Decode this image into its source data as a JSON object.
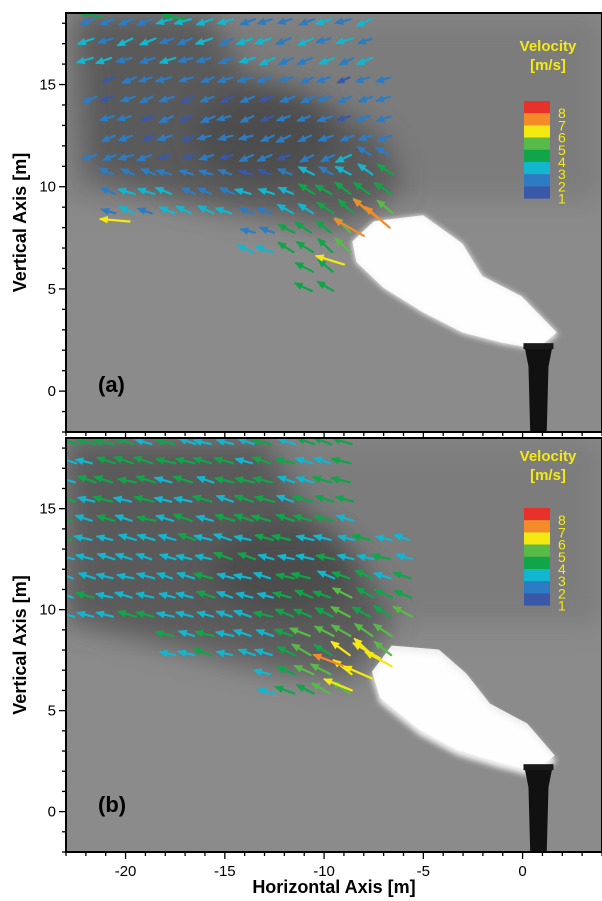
{
  "chart_data": {
    "type": "quiver",
    "panels": [
      {
        "label": "(a)",
        "xlim": [
          -23,
          4
        ],
        "ylim": [
          -2,
          18.5
        ],
        "yticks": [
          0,
          5,
          10,
          15
        ],
        "xticks": [],
        "ylabel": "Vertical Axis [m]",
        "legend": {
          "title_line1": "Velocity",
          "title_line2": "[m/s]",
          "labels": [
            "8",
            "7",
            "6",
            "5",
            "4",
            "3",
            "2",
            "1"
          ],
          "colors": [
            "#e8312a",
            "#f58a28",
            "#f4ea12",
            "#58bb47",
            "#11a54a",
            "#12b6cf",
            "#2c7cc4",
            "#3a58a8"
          ]
        },
        "vectors": [
          {
            "x": -21.2,
            "y": 18.3,
            "u": -2.6,
            "v": 0.6,
            "speed": 4.3
          },
          {
            "x": -17.0,
            "y": 18.2,
            "u": -1.6,
            "v": 0.3,
            "speed": 4.1
          },
          {
            "x": -19.8,
            "y": 8.3,
            "u": -4.8,
            "v": 0.4,
            "speed": 6.3
          },
          {
            "x": -9.0,
            "y": 6.2,
            "u": -4.6,
            "v": 1.4,
            "speed": 6.2
          },
          {
            "x": -7.2,
            "y": 8.4,
            "u": -3.4,
            "v": 2.6,
            "speed": 7.4
          },
          {
            "x": -6.7,
            "y": 8.0,
            "u": -2.8,
            "v": 2.4,
            "speed": 7.1
          },
          {
            "x": -8.0,
            "y": 7.6,
            "u": -4.4,
            "v": 2.5,
            "speed": 7.8
          }
        ]
      },
      {
        "label": "(b)",
        "xlim": [
          -23,
          4
        ],
        "ylim": [
          -2,
          18.5
        ],
        "yticks": [
          0,
          5,
          10,
          15
        ],
        "xticks": [
          -20,
          -15,
          -10,
          -5,
          0
        ],
        "ylabel": "Vertical Axis [m]",
        "xlabel": "Horizontal Axis [m]",
        "legend": {
          "title_line1": "Velocity",
          "title_line2": "[m/s]",
          "labels": [
            "8",
            "7",
            "6",
            "5",
            "4",
            "3",
            "2",
            "1"
          ],
          "colors": [
            "#e8312a",
            "#f58a28",
            "#f4ea12",
            "#58bb47",
            "#11a54a",
            "#12b6cf",
            "#2c7cc4",
            "#3a58a8"
          ]
        },
        "vectors": [
          {
            "x": -9.0,
            "y": 7.2,
            "u": -4.2,
            "v": 1.6,
            "speed": 7.3
          },
          {
            "x": -8.6,
            "y": 6.0,
            "u": -4.4,
            "v": 1.8,
            "speed": 6.4
          },
          {
            "x": -7.6,
            "y": 6.6,
            "u": -4.6,
            "v": 2.0,
            "speed": 6.5
          },
          {
            "x": -7.2,
            "y": 7.6,
            "u": -4.6,
            "v": 2.6,
            "speed": 6.6
          },
          {
            "x": -6.6,
            "y": 7.2,
            "u": -4.4,
            "v": 2.4,
            "speed": 6.4
          }
        ]
      }
    ]
  }
}
